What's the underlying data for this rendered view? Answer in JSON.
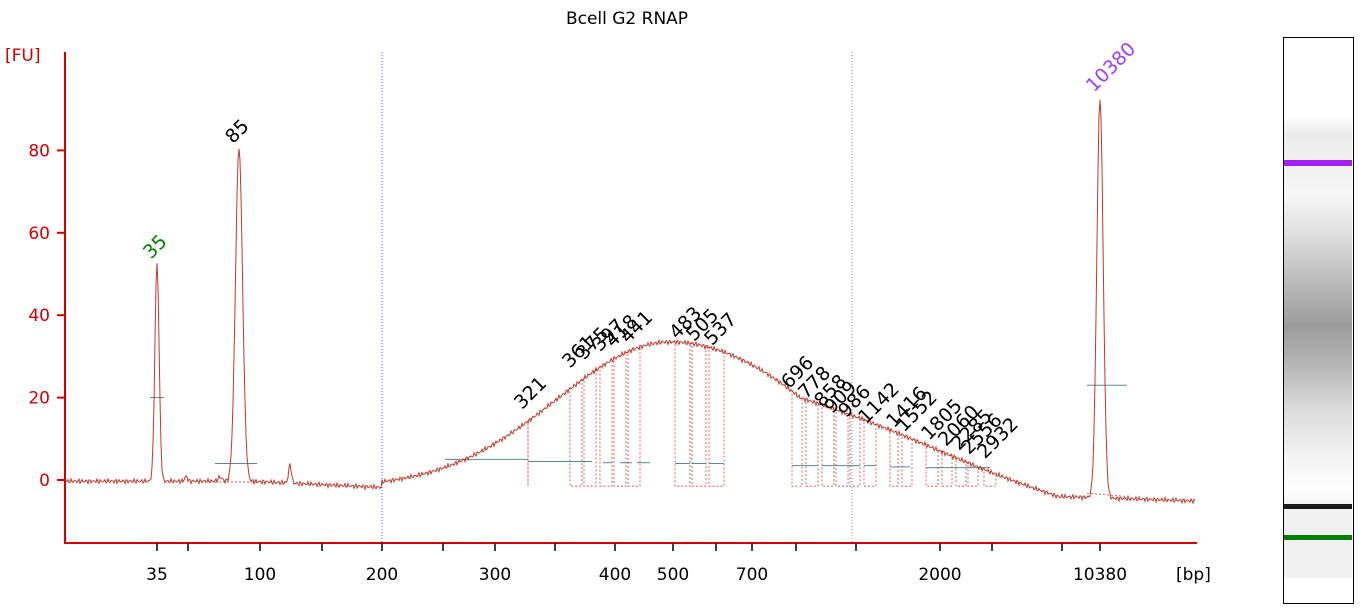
{
  "chart_data": {
    "type": "line",
    "title": "Bcell G2 RNAP",
    "ylabel": "[FU]",
    "xlabel": "[bp]",
    "ylim": [
      -15,
      100
    ],
    "yticks": [
      0,
      20,
      40,
      60,
      80
    ],
    "xticks": [
      "35",
      "100",
      "200",
      "300",
      "400",
      "500",
      "700",
      "2000",
      "10380"
    ],
    "peaks": [
      {
        "label": "35",
        "height": 52.5,
        "color": "#008000",
        "role": "lower-marker"
      },
      {
        "label": "85",
        "height": 80.5,
        "color": "#000000"
      },
      {
        "label": "321",
        "height": 16,
        "color": "#000000"
      },
      {
        "label": "361",
        "height": 26,
        "color": "#000000"
      },
      {
        "label": "375",
        "height": 28,
        "color": "#000000"
      },
      {
        "label": "397",
        "height": 30,
        "color": "#000000"
      },
      {
        "label": "418",
        "height": 31,
        "color": "#000000"
      },
      {
        "label": "441",
        "height": 32,
        "color": "#000000"
      },
      {
        "label": "483",
        "height": 33,
        "color": "#000000"
      },
      {
        "label": "505",
        "height": 32.5,
        "color": "#000000"
      },
      {
        "label": "537",
        "height": 31.5,
        "color": "#000000"
      },
      {
        "label": "696",
        "height": 21,
        "color": "#000000"
      },
      {
        "label": "778",
        "height": 18.5,
        "color": "#000000"
      },
      {
        "label": "858",
        "height": 16.5,
        "color": "#000000"
      },
      {
        "label": "909",
        "height": 15,
        "color": "#000000"
      },
      {
        "label": "986",
        "height": 14,
        "color": "#000000"
      },
      {
        "label": "1142",
        "height": 12.5,
        "color": "#000000"
      },
      {
        "label": "1416",
        "height": 11.5,
        "color": "#000000"
      },
      {
        "label": "1552",
        "height": 10.5,
        "color": "#000000"
      },
      {
        "label": "1805",
        "height": 8.5,
        "color": "#000000"
      },
      {
        "label": "2060",
        "height": 7,
        "color": "#000000"
      },
      {
        "label": "2285",
        "height": 6,
        "color": "#000000"
      },
      {
        "label": "2556",
        "height": 5,
        "color": "#000000"
      },
      {
        "label": "2932",
        "height": 4,
        "color": "#000000"
      },
      {
        "label": "10380",
        "height": 93,
        "color": "#a040f0",
        "role": "upper-marker"
      }
    ],
    "grid": false,
    "colors": {
      "axis": "#d40000",
      "trace": "#c0392b",
      "baseline": "#5b8a8a",
      "lower_marker": "#008000",
      "upper_marker": "#a040f0",
      "gel_lower_band": "#008000",
      "gel_upper_band": "#a020f0"
    }
  }
}
